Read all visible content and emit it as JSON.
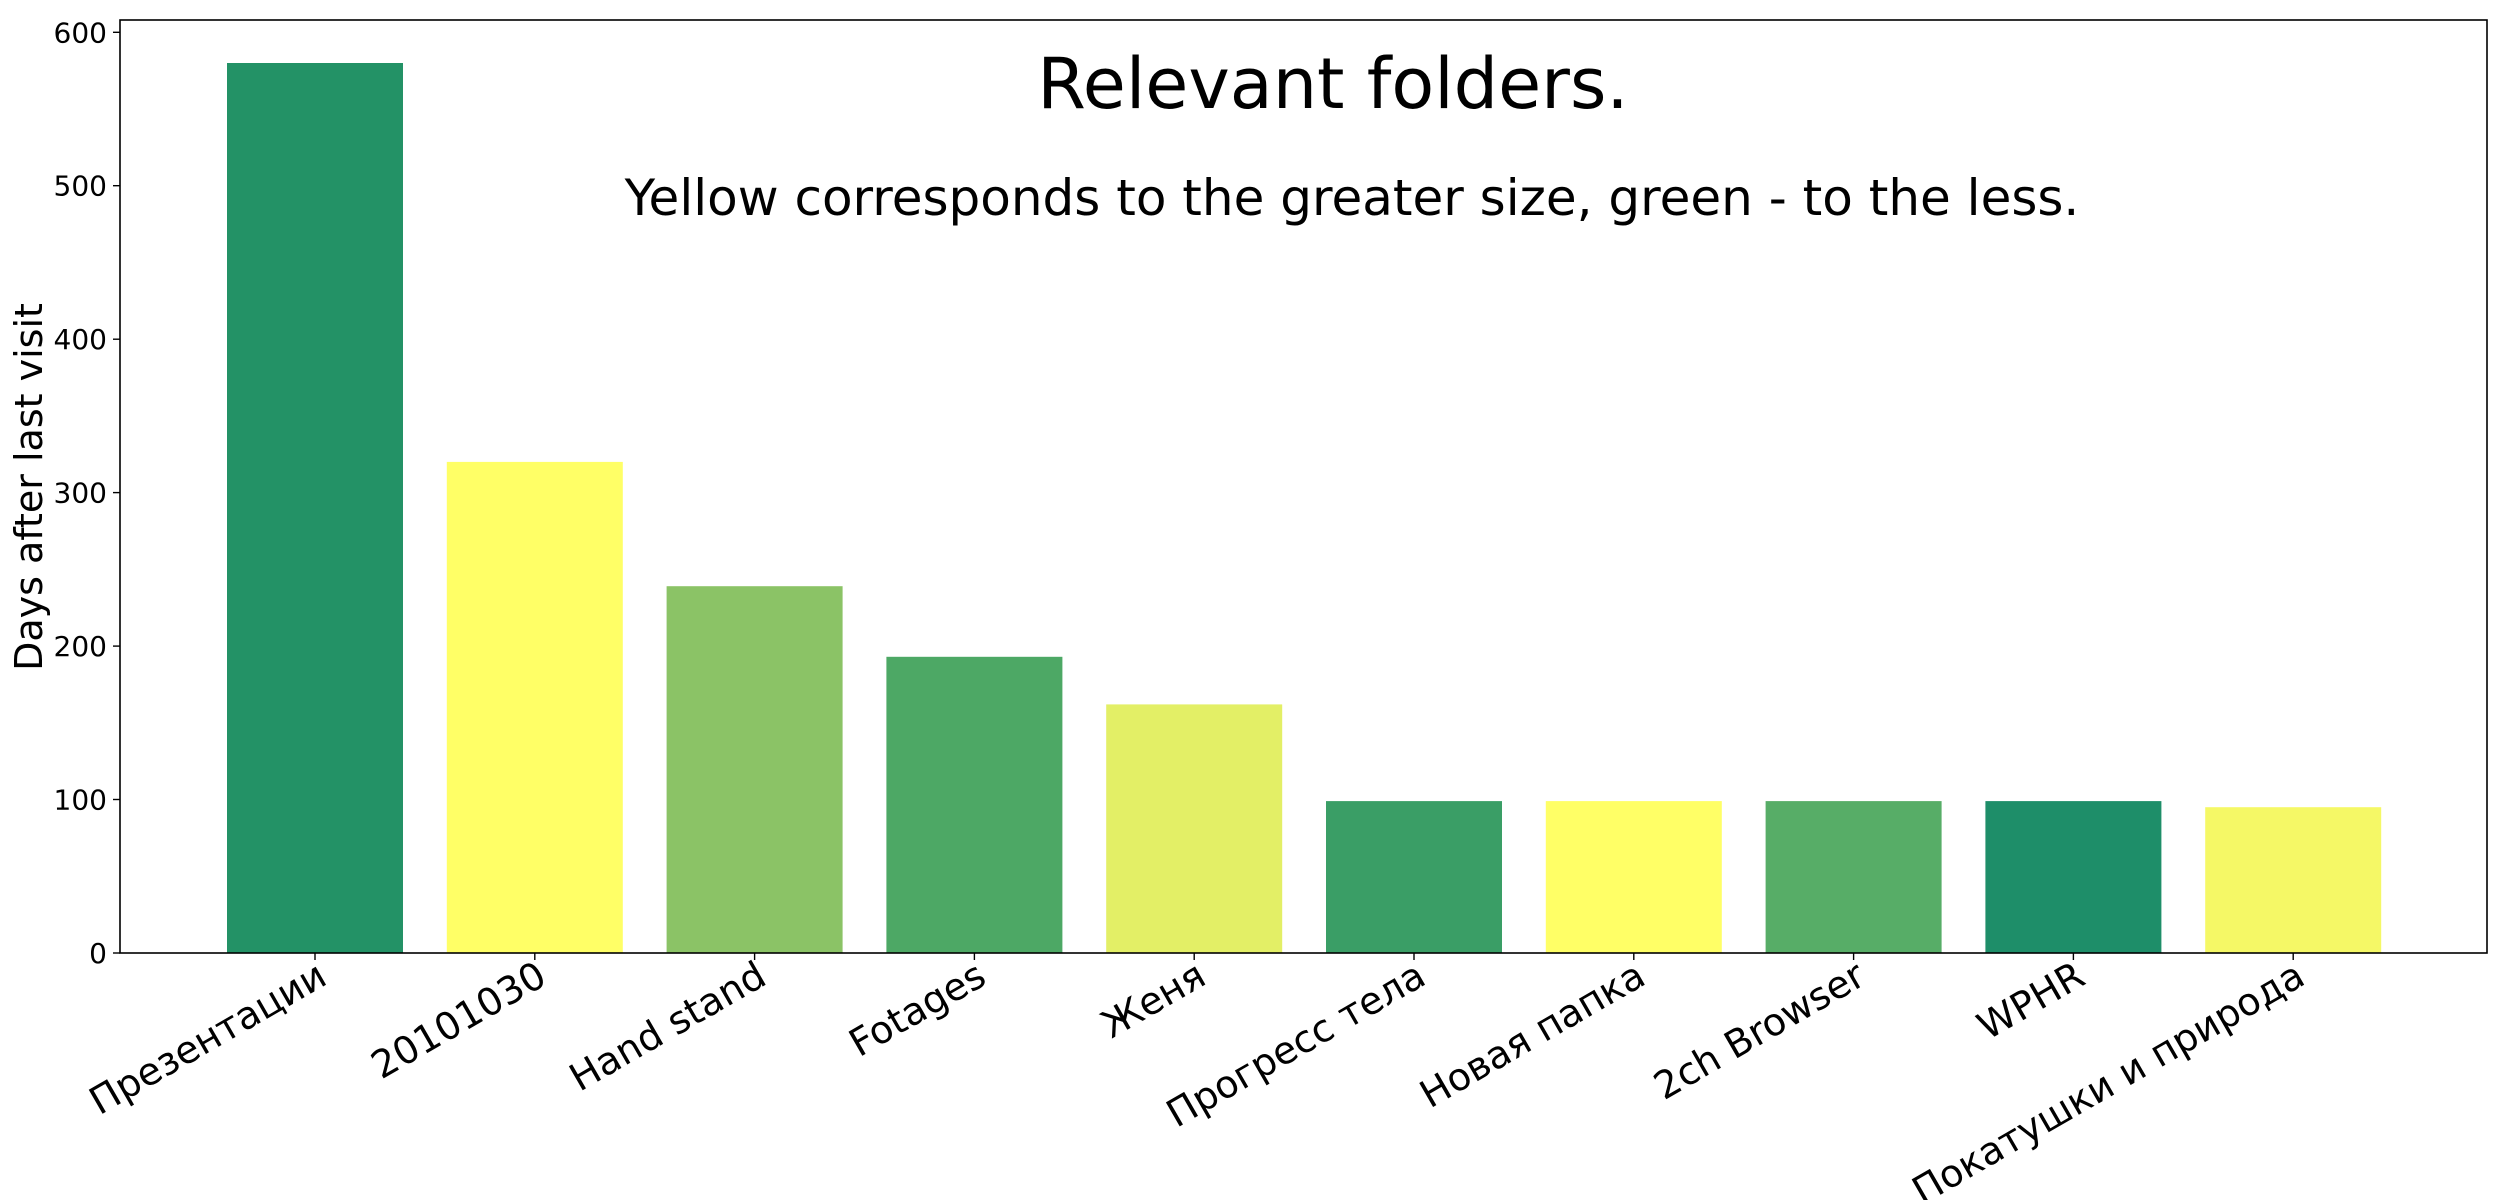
{
  "chart_data": {
    "type": "bar",
    "title": "Relevant folders.",
    "subtitle": "Yellow corresponds to the greater size, green - to the less.",
    "xlabel": "",
    "ylabel": "Days after last visit",
    "ylim": [
      0,
      608
    ],
    "yticks": [
      "0",
      "100",
      "200",
      "300",
      "400",
      "500",
      "600"
    ],
    "grid": false,
    "categories": [
      "Презентации",
      "20101030",
      "Hand stand",
      "Fotages",
      "Женя",
      "Прогресс тела",
      "Новая папка",
      "2ch Browser",
      "WPHR",
      "Покатушки и природа"
    ],
    "values": [
      580,
      320,
      239,
      193,
      162,
      99,
      99,
      99,
      99,
      95
    ],
    "colors": [
      "#239266",
      "#FFFF66",
      "#8BC366",
      "#4DA865",
      "#E3EF66",
      "#3A9E66",
      "#FFFF66",
      "#57AD67",
      "#1E8E69",
      "#F5F866"
    ]
  }
}
